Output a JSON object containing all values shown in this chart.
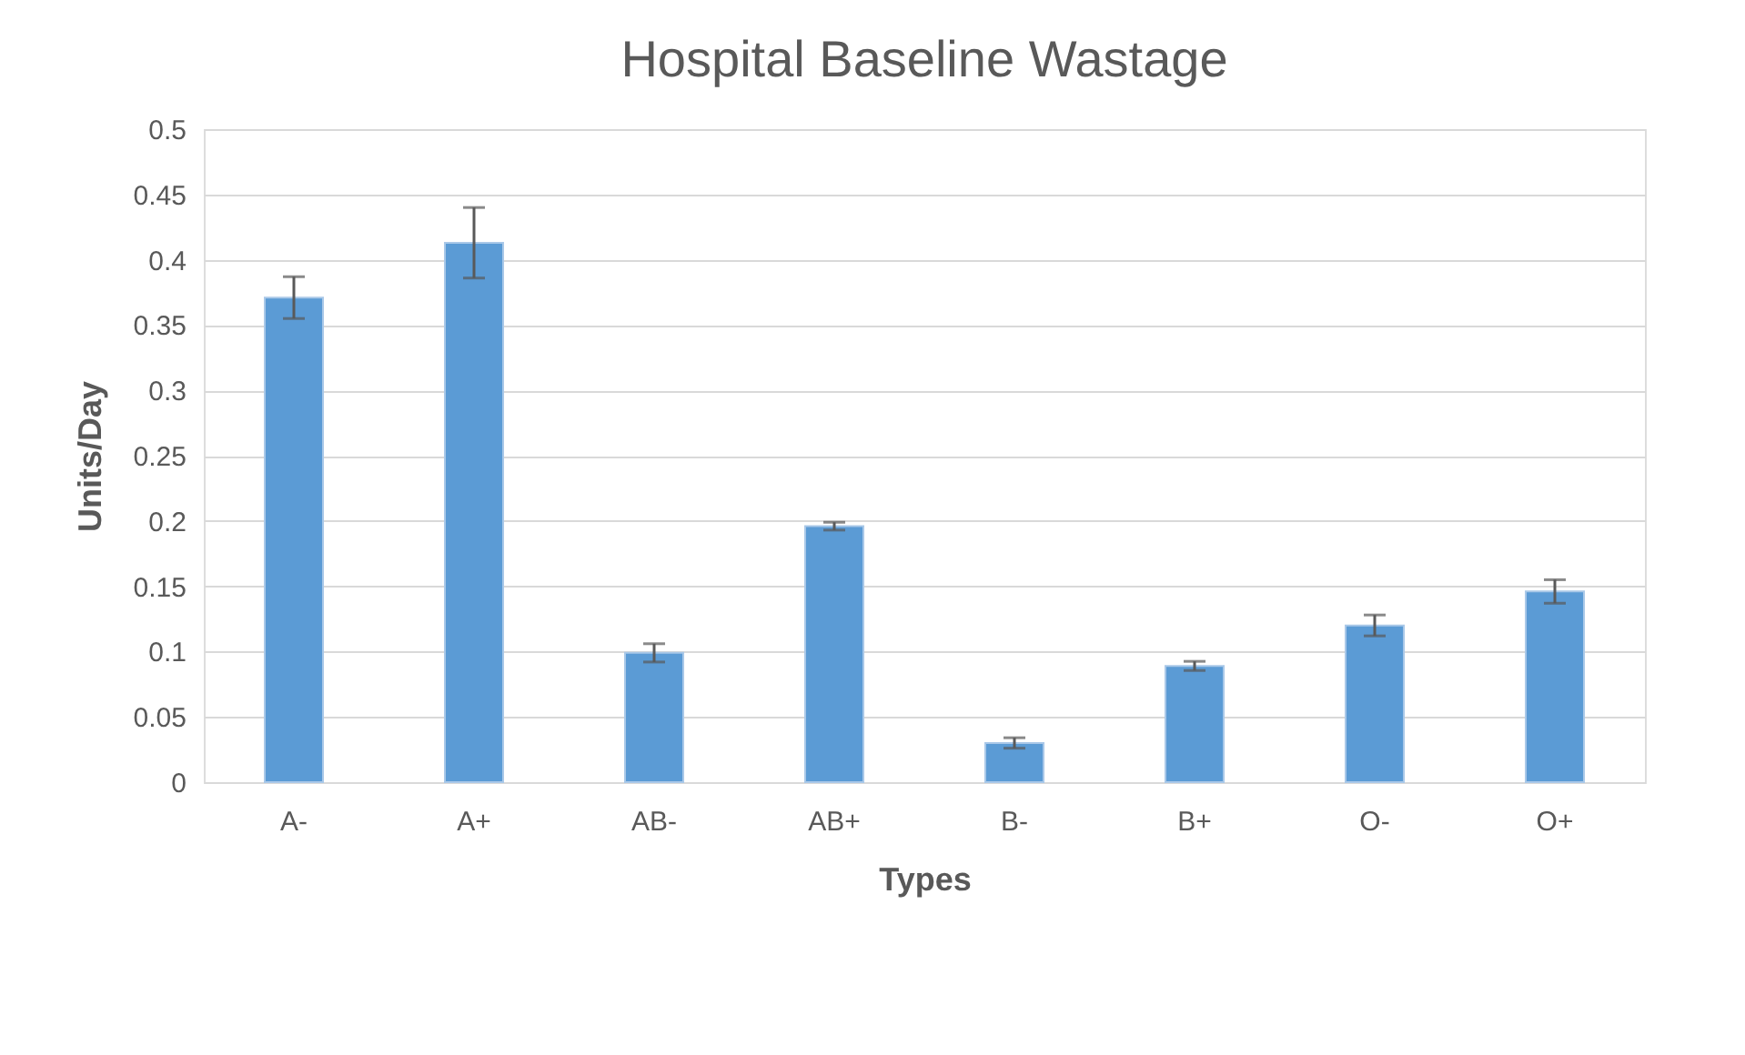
{
  "chart_data": {
    "type": "bar",
    "title": "Hospital Baseline Wastage",
    "xlabel": "Types",
    "ylabel": "Units/Day",
    "categories": [
      "A-",
      "A+",
      "AB-",
      "AB+",
      "B-",
      "B+",
      "O-",
      "O+"
    ],
    "series": [
      {
        "color": "#5b9bd5",
        "values": [
          0.371,
          0.413,
          0.099,
          0.196,
          0.03,
          0.089,
          0.12,
          0.146
        ],
        "errors": [
          0.016,
          0.027,
          0.007,
          0.003,
          0.004,
          0.0035,
          0.008,
          0.009
        ]
      }
    ],
    "ylim": [
      0,
      0.5
    ],
    "yticks": [
      0,
      0.05,
      0.1,
      0.15,
      0.2,
      0.25,
      0.3,
      0.35,
      0.4,
      0.45,
      0.5
    ],
    "grid": "y"
  }
}
